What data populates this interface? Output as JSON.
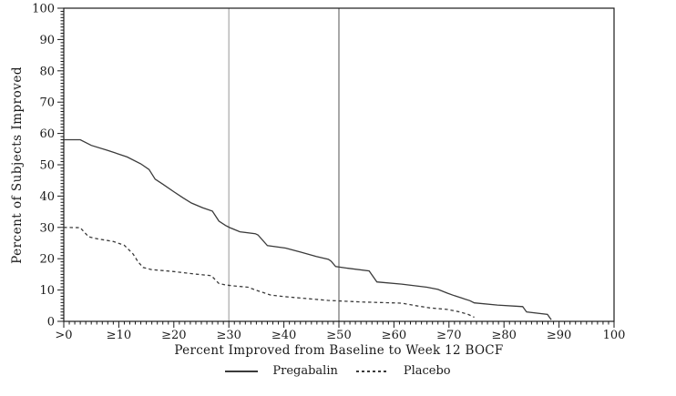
{
  "colors": {
    "axis": "#1a1a1a",
    "series": "#3a3a3a",
    "background": "#ffffff"
  },
  "chart_data": {
    "type": "line",
    "title": "",
    "xlabel": "Percent Improved from Baseline to Week 12 BOCF",
    "ylabel": "Percent of Subjects Improved",
    "xlim": [
      0,
      100
    ],
    "ylim": [
      0,
      100
    ],
    "grid": false,
    "x_tick_values": [
      0,
      10,
      20,
      30,
      40,
      50,
      60,
      70,
      80,
      90,
      100
    ],
    "x_tick_labels": [
      ">0",
      "≥10",
      "≥20",
      "≥30",
      "≥40",
      "≥50",
      "≥60",
      "≥70",
      "≥80",
      "≥90",
      "100"
    ],
    "y_tick_values": [
      0,
      10,
      20,
      30,
      40,
      50,
      60,
      70,
      80,
      90,
      100
    ],
    "y_tick_labels": [
      "0",
      "10",
      "20",
      "30",
      "40",
      "50",
      "60",
      "70",
      "80",
      "90",
      "100"
    ],
    "minor_tick_step_x": 1,
    "minor_tick_step_y": 1,
    "reference_lines": [
      {
        "x": 30,
        "color": "#a8a8a8"
      },
      {
        "x": 50,
        "color": "#6f6f6f"
      }
    ],
    "legend_position": "bottom-center",
    "legend": [
      {
        "label": "Pregabalin",
        "style": "solid"
      },
      {
        "label": "Placebo",
        "style": "dashed"
      }
    ],
    "series": [
      {
        "name": "Pregabalin",
        "dash": "solid",
        "color": "#3a3a3a",
        "points": [
          [
            0,
            58
          ],
          [
            3,
            58
          ],
          [
            5,
            56.2
          ],
          [
            8,
            54.6
          ],
          [
            11.5,
            52.5
          ],
          [
            14,
            50.3
          ],
          [
            15.5,
            48.5
          ],
          [
            16.6,
            45.4
          ],
          [
            18,
            43.8
          ],
          [
            20,
            41.4
          ],
          [
            21.6,
            39.5
          ],
          [
            23.2,
            37.8
          ],
          [
            25.2,
            36.3
          ],
          [
            27,
            35.2
          ],
          [
            28.2,
            32
          ],
          [
            29.4,
            30.6
          ],
          [
            30.2,
            29.9
          ],
          [
            32,
            28.6
          ],
          [
            34.8,
            28
          ],
          [
            35.3,
            27.6
          ],
          [
            37,
            24.2
          ],
          [
            40.3,
            23.4
          ],
          [
            43.1,
            22.1
          ],
          [
            45.9,
            20.7
          ],
          [
            48.1,
            19.8
          ],
          [
            48.6,
            19.2
          ],
          [
            49.4,
            17.5
          ],
          [
            51.4,
            17
          ],
          [
            55.5,
            16.1
          ],
          [
            56.9,
            12.6
          ],
          [
            61.4,
            11.9
          ],
          [
            66,
            10.9
          ],
          [
            68,
            10.2
          ],
          [
            69.7,
            9
          ],
          [
            71,
            8.2
          ],
          [
            73.8,
            6.6
          ],
          [
            74.6,
            5.9
          ],
          [
            78.8,
            5.2
          ],
          [
            83.4,
            4.7
          ],
          [
            84.1,
            3
          ],
          [
            87.9,
            2.2
          ],
          [
            88.4,
            1
          ],
          [
            88.6,
            0.5
          ]
        ]
      },
      {
        "name": "Placebo",
        "dash": "dashed",
        "color": "#3a3a3a",
        "points": [
          [
            0,
            30
          ],
          [
            3,
            29.9
          ],
          [
            4.5,
            27
          ],
          [
            6,
            26.4
          ],
          [
            9,
            25.5
          ],
          [
            11,
            24.3
          ],
          [
            12.6,
            21.5
          ],
          [
            13.5,
            19
          ],
          [
            14.4,
            17.2
          ],
          [
            16,
            16.5
          ],
          [
            20,
            15.9
          ],
          [
            24,
            15.1
          ],
          [
            26.8,
            14.6
          ],
          [
            28.2,
            12.1
          ],
          [
            29.5,
            11.6
          ],
          [
            31,
            11.3
          ],
          [
            33.5,
            10.9
          ],
          [
            35,
            9.9
          ],
          [
            37.6,
            8.4
          ],
          [
            40,
            7.9
          ],
          [
            44,
            7.3
          ],
          [
            48,
            6.7
          ],
          [
            54,
            6.2
          ],
          [
            58,
            6
          ],
          [
            61.4,
            5.8
          ],
          [
            64,
            5
          ],
          [
            66.5,
            4.3
          ],
          [
            69.7,
            3.8
          ],
          [
            72,
            3
          ],
          [
            73.5,
            2.2
          ],
          [
            74.6,
            1.3
          ]
        ]
      }
    ]
  }
}
